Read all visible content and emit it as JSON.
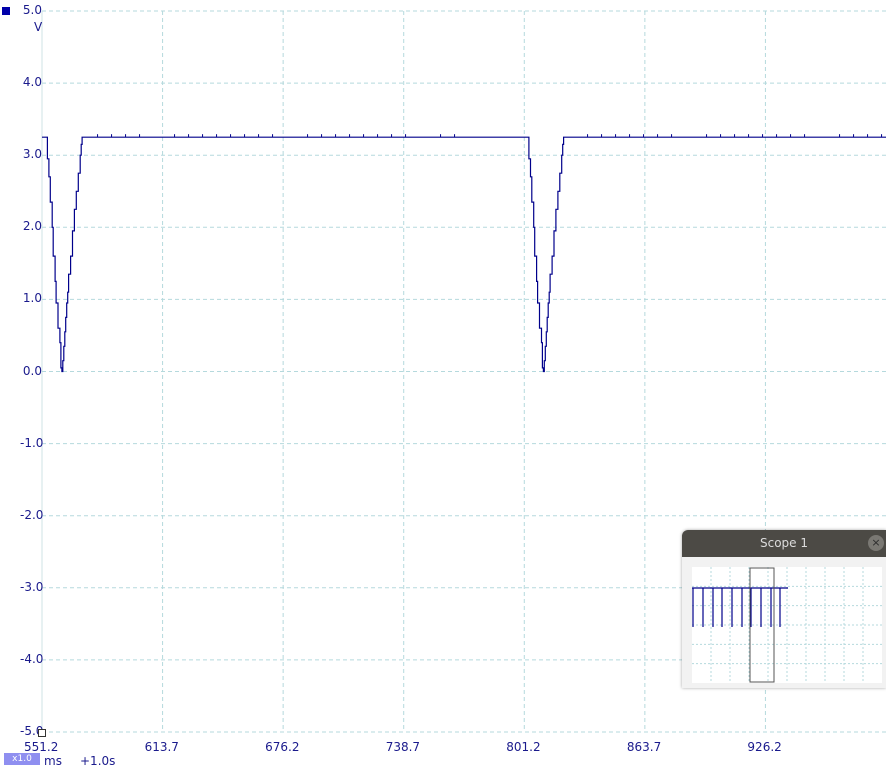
{
  "chart_data": {
    "type": "line",
    "title": "",
    "xlabel": "ms",
    "ylabel": "V",
    "x_ticks": [
      551.2,
      613.7,
      676.2,
      738.7,
      801.2,
      863.7,
      926.2
    ],
    "x_tick_labels": [
      "551.2",
      "613.7",
      "676.2",
      "738.7",
      "801.2",
      "863.7",
      "926.2"
    ],
    "y_ticks": [
      5.0,
      4.0,
      3.0,
      2.0,
      1.0,
      0.0,
      -1.0,
      -2.0,
      -3.0,
      -4.0,
      -5.0
    ],
    "y_tick_labels": [
      "5.0",
      "4.0",
      "3.0",
      "2.0",
      "1.0",
      "0.0",
      "-1.0",
      "-2.0",
      "-3.0",
      "-4.0",
      "-5.0"
    ],
    "xlim": [
      551.2,
      988.7
    ],
    "ylim": [
      -5.0,
      5.0
    ],
    "grid": true,
    "series": [
      {
        "color": "#00008b",
        "x": [
          551.2,
          553.5,
          554.0,
          554.8,
          555.5,
          556.5,
          557.0,
          558.0,
          558.5,
          559.5,
          560.5,
          561.0,
          561.5,
          562.0,
          562.5,
          563.0,
          563.5,
          564.0,
          564.5,
          565.0,
          566.0,
          567.0,
          568.0,
          569.0,
          570.0,
          571.0,
          571.5,
          572.0,
          573.0,
          988.7
        ],
        "y": [
          3.25,
          3.25,
          2.95,
          2.7,
          2.35,
          2.0,
          1.6,
          1.25,
          0.95,
          0.6,
          0.4,
          0.05,
          0.0,
          0.15,
          0.35,
          0.55,
          0.75,
          0.95,
          1.1,
          1.35,
          1.6,
          1.95,
          2.25,
          2.5,
          2.75,
          3.0,
          3.15,
          3.25,
          3.25,
          3.25
        ]
      }
    ],
    "pulses_x": [
      551.2,
      800.8
    ]
  },
  "ui": {
    "unit_v": "V",
    "unit_ms": "ms",
    "zoom_label": "x1.0",
    "offset_label": "+1.0s",
    "overview_title": "Scope 1",
    "close_icon": "×",
    "trace_color": "#00008b",
    "grid_color": "#b5d9dd"
  }
}
